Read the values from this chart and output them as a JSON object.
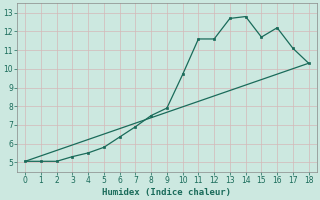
{
  "title": "",
  "xlabel": "Humidex (Indice chaleur)",
  "ylabel": "",
  "xlim": [
    -0.5,
    18.5
  ],
  "ylim": [
    4.5,
    13.5
  ],
  "xticks": [
    0,
    1,
    2,
    3,
    4,
    5,
    6,
    7,
    8,
    9,
    10,
    11,
    12,
    13,
    14,
    15,
    16,
    17,
    18
  ],
  "yticks": [
    5,
    6,
    7,
    8,
    9,
    10,
    11,
    12,
    13
  ],
  "bg_color": "#cce8e0",
  "line_color": "#1a6b5a",
  "grid_color": "#b0d8d0",
  "series1_x": [
    0,
    1,
    2,
    3,
    4,
    5,
    6,
    7,
    8,
    9,
    10,
    11,
    12,
    13,
    14,
    15,
    16,
    17,
    18
  ],
  "series1_y": [
    5.05,
    5.05,
    5.05,
    5.3,
    5.5,
    5.8,
    6.35,
    6.9,
    7.5,
    7.9,
    9.7,
    11.6,
    11.6,
    12.7,
    12.8,
    11.7,
    12.2,
    11.1,
    10.3
  ],
  "series2_x": [
    0,
    18
  ],
  "series2_y": [
    5.05,
    10.3
  ]
}
